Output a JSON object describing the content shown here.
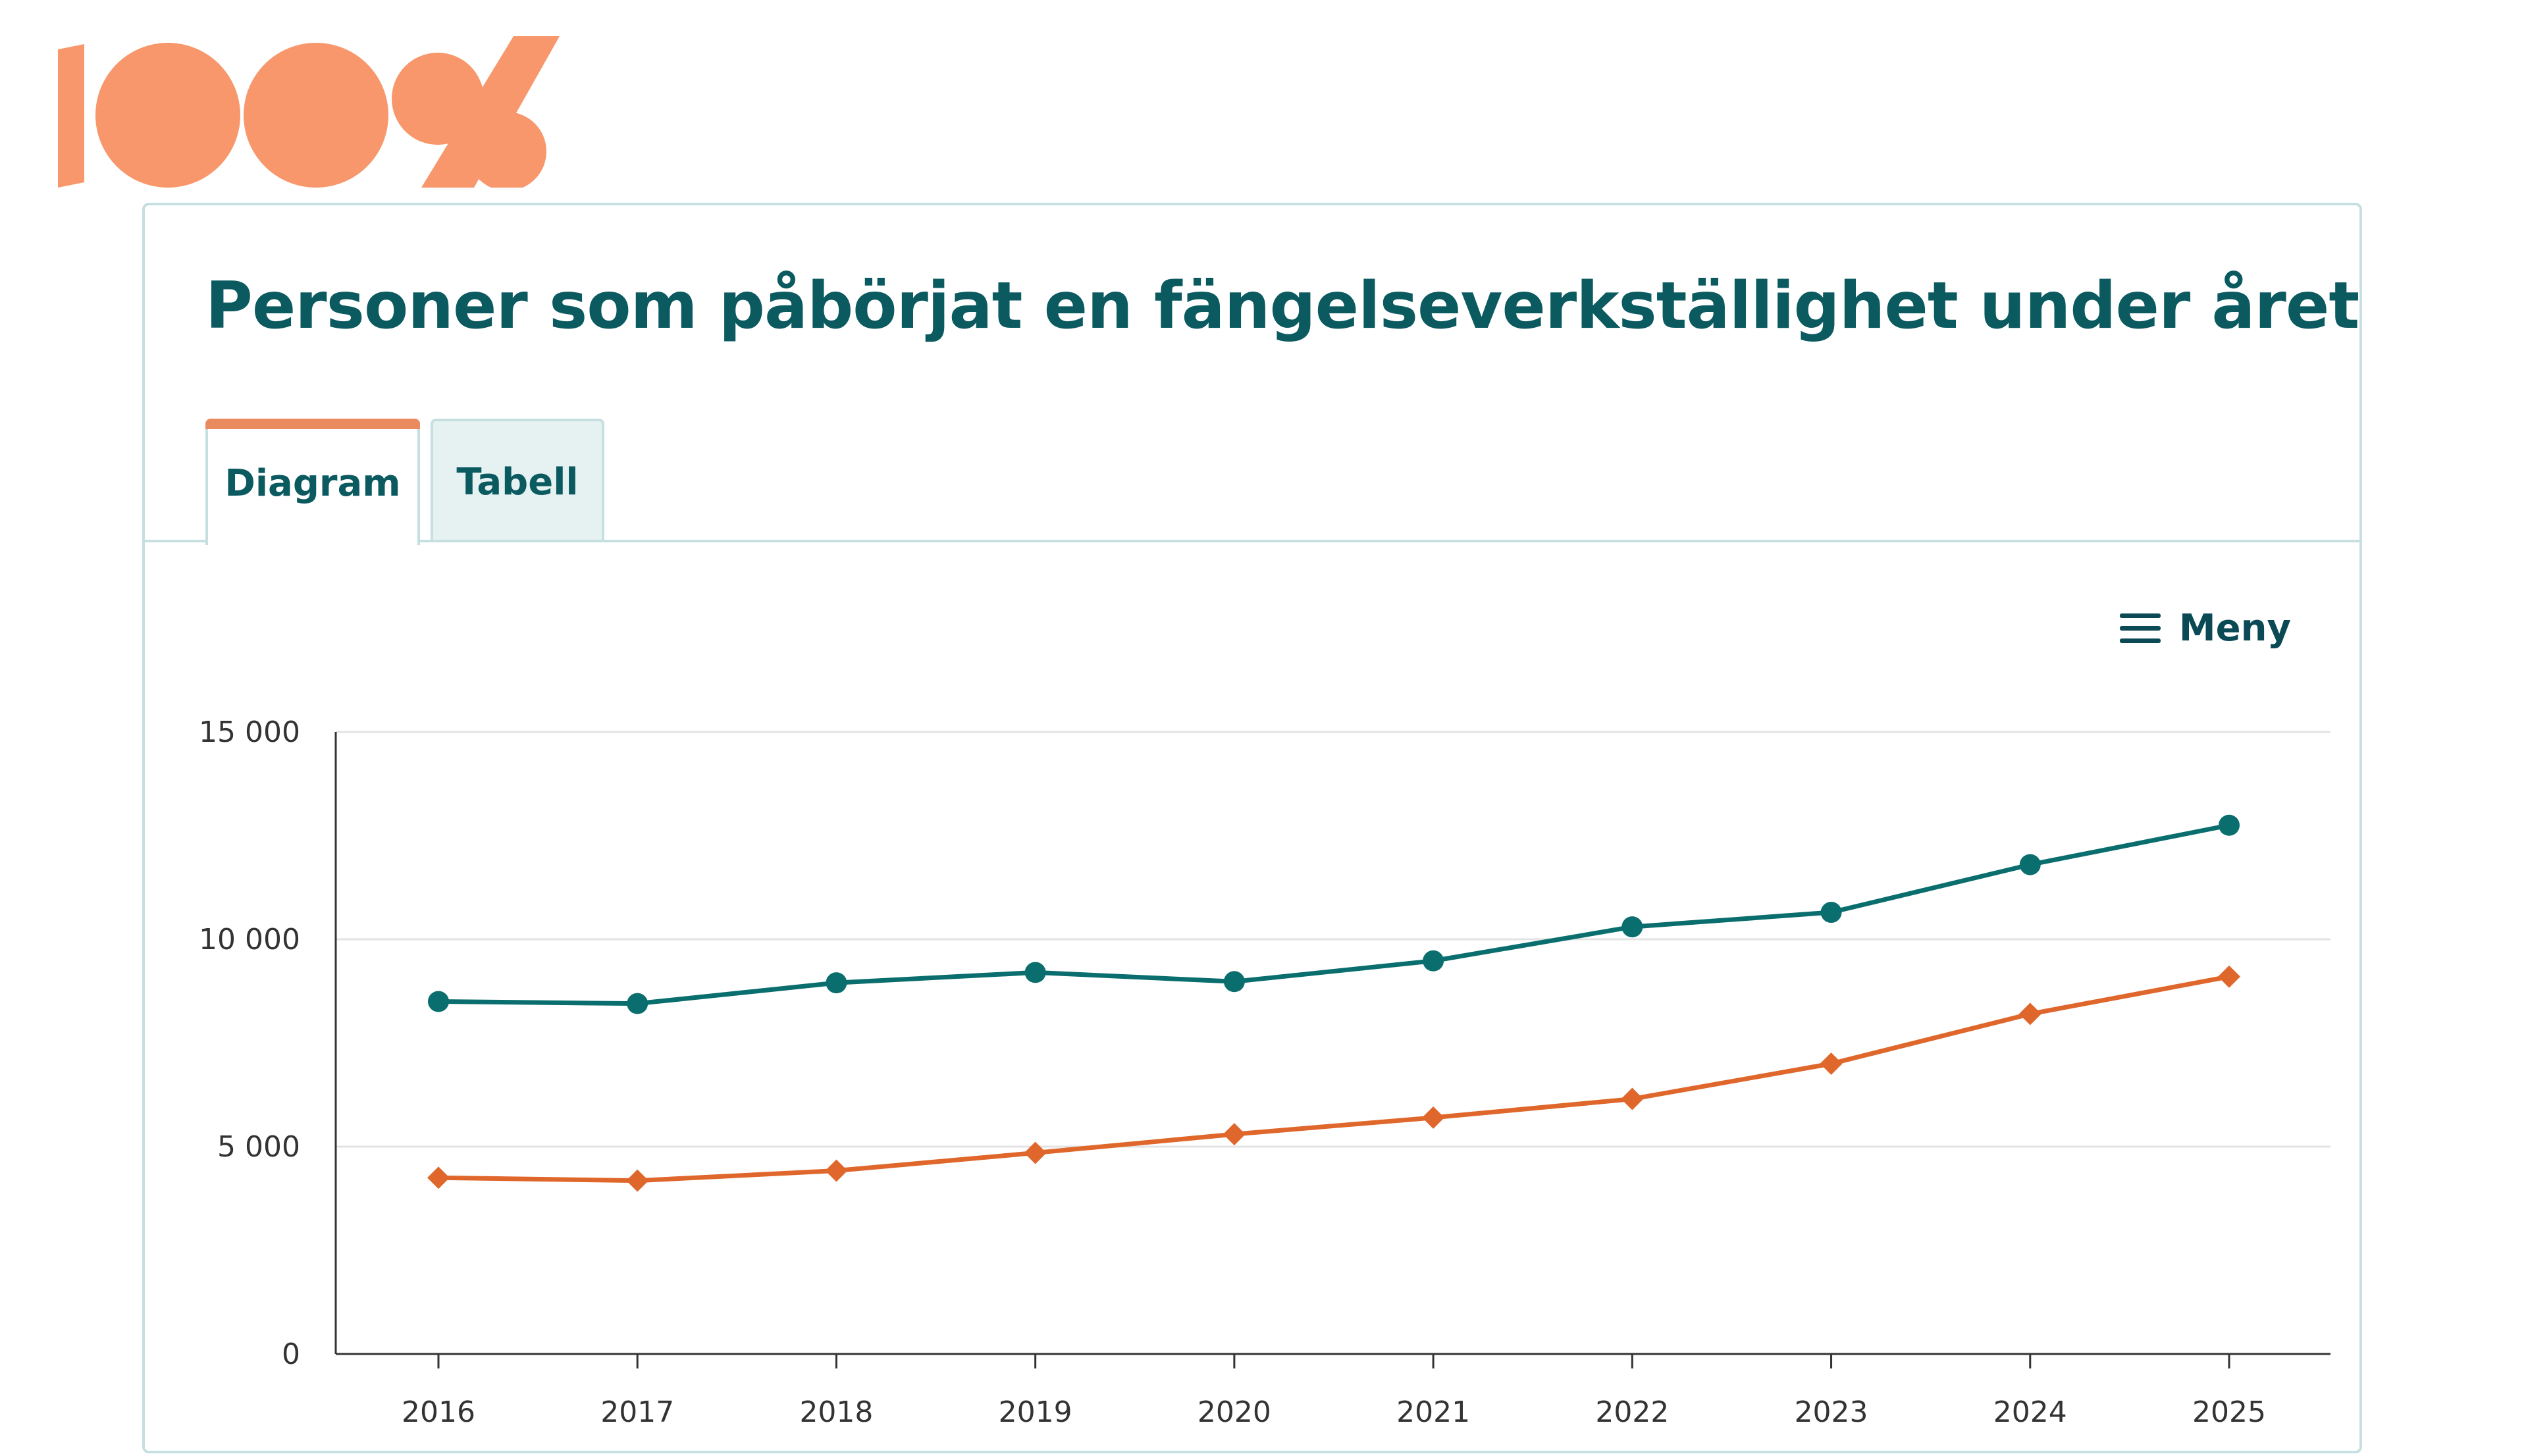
{
  "logo": {
    "text": "100%",
    "color": "#f7976b"
  },
  "card": {
    "title": "Personer som påbörjat en fängelseverkställighet under året"
  },
  "tabs": [
    {
      "label": "Diagram",
      "active": true
    },
    {
      "label": "Tabell",
      "active": false
    }
  ],
  "menu": {
    "label": "Meny",
    "icon": "hamburger-icon"
  },
  "colors": {
    "accent": "#0b5a60",
    "series_1": "#0b6e6e",
    "series_2": "#e0672b",
    "tab_accent": "#e98a5f"
  },
  "chart_data": {
    "type": "line",
    "x": [
      "2016",
      "2017",
      "2018",
      "2019",
      "2020",
      "2021",
      "2022",
      "2023",
      "2024",
      "2025"
    ],
    "series": [
      {
        "color": "#0b6e6e",
        "marker": "circle",
        "values": [
          8500,
          8450,
          8950,
          9200,
          8980,
          9480,
          10300,
          10650,
          11800,
          12750
        ]
      },
      {
        "color": "#e0672b",
        "marker": "diamond",
        "values": [
          4250,
          4180,
          4420,
          4850,
          5300,
          5700,
          6150,
          7000,
          8200,
          9100
        ]
      }
    ],
    "ylim": [
      0,
      15000
    ],
    "yticks": [
      "0",
      "5 000",
      "10 000",
      "15 000"
    ],
    "ytick_values": [
      0,
      5000,
      10000,
      15000
    ],
    "grid": true,
    "legend": "none"
  }
}
